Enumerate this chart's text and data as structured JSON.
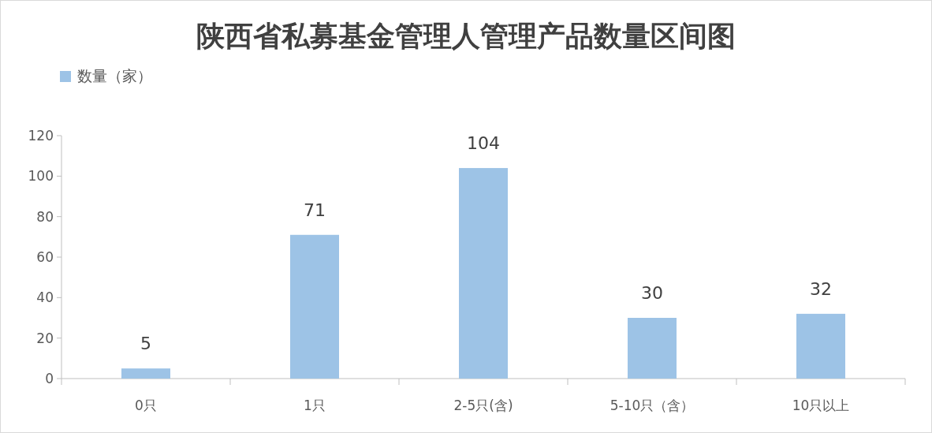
{
  "chart_data": {
    "type": "bar",
    "title": "陕西省私募基金管理人管理产品数量区间图",
    "categories": [
      "0只",
      "1只",
      "2-5只(含)",
      "5-10只（含）",
      "10只以上"
    ],
    "series": [
      {
        "name": "数量（家）",
        "color": "#9dc3e6",
        "values": [
          5,
          71,
          104,
          30,
          32
        ]
      }
    ],
    "ylim": [
      0,
      120
    ],
    "yticks": [
      0,
      20,
      40,
      60,
      80,
      100,
      120
    ],
    "data_labels": true,
    "legend": "top left"
  }
}
